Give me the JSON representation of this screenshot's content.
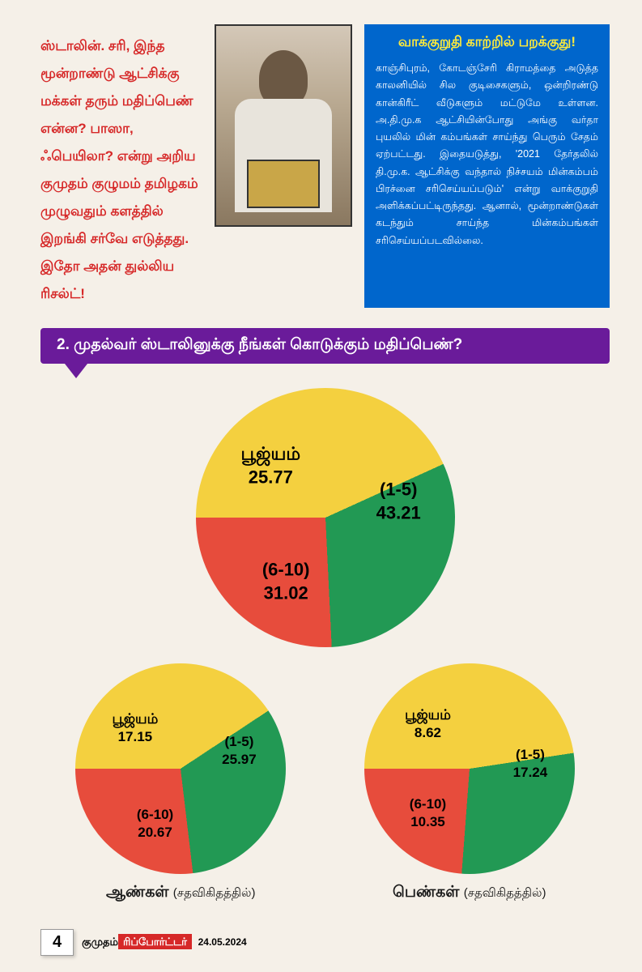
{
  "intro_text": "ஸ்டாலின். சரி, இந்த மூன்றாண்டு ஆட்சிக்கு மக்கள் தரும் மதிப்பெண் என்ன? பாஸா, ஃபெயிலா? என்று அறிய குமுதம் குழுமம் தமிழகம் முழுவதும் களத்தில் இறங்கி சர்வே எடுத்தது. இதோ அதன் துல்லிய ரிசல்ட்!",
  "intro_color": "#d62828",
  "sidebar": {
    "title": "வாக்குறுதி காற்றில் பறக்குது!",
    "body": "காஞ்சிபுரம், கோடஞ்சேரி கிராமத்தை அடுத்த காலனியில் சில குடிசைகளும், ஒன்றிரண்டு கான்கிரீட் வீடுகளும் மட்டுமே உள்ளன. அ.தி.மு.க ஆட்சியின்போது அங்கு வர்தா புயலில் மின் கம்பங்கள் சாய்ந்து பெரும் சேதம் ஏற்பட்டது. இதையடுத்து, '2021 தேர்தலில் தி.மு.க. ஆட்சிக்கு வந்தால் நிச்சயம் மின்கம்பம் பிரச்னை சரிசெய்யப்படும்' என்று வாக்குறுதி அளிக்கப்பட்டிருந்தது. ஆனால், மூன்றாண்டுகள் கடந்தும் சாய்ந்த மின்கம்பங்கள் சரிசெய்யப்படவில்லை.",
    "bg_color": "#0066cc",
    "title_color": "#ffeb3b"
  },
  "question": {
    "text": "2. முதல்வர் ஸ்டாலினுக்கு நீங்கள் கொடுக்கும் மதிப்பெண்?",
    "bg_color": "#6a1b9a"
  },
  "charts": {
    "main": {
      "type": "pie",
      "size": 320,
      "slices": [
        {
          "label": "(1-5)",
          "value": 43.21,
          "color": "#f4d03f"
        },
        {
          "label": "(6-10)",
          "value": 31.02,
          "color": "#229954"
        },
        {
          "label": "பூஜ்யம்",
          "value": 25.77,
          "color": "#e74c3c"
        }
      ],
      "label_fontsize": 22
    },
    "male": {
      "type": "pie",
      "size": 260,
      "caption": "ஆண்கள்",
      "caption_sub": "(சதவிகிதத்தில்)",
      "slices": [
        {
          "label": "(1-5)",
          "value": 25.97,
          "color": "#f4d03f"
        },
        {
          "label": "(6-10)",
          "value": 20.67,
          "color": "#229954"
        },
        {
          "label": "பூஜ்யம்",
          "value": 17.15,
          "color": "#e74c3c"
        }
      ],
      "label_fontsize": 17
    },
    "female": {
      "type": "pie",
      "size": 260,
      "caption": "பெண்கள்",
      "caption_sub": "(சதவிகிதத்தில்)",
      "slices": [
        {
          "label": "(1-5)",
          "value": 17.24,
          "color": "#f4d03f"
        },
        {
          "label": "(6-10)",
          "value": 10.35,
          "color": "#229954"
        },
        {
          "label": "பூஜ்யம்",
          "value": 8.62,
          "color": "#e74c3c"
        }
      ],
      "label_fontsize": 17
    }
  },
  "footer": {
    "page_number": "4",
    "publication_prefix": "குமுதம்",
    "publication_name": "ரிப்போர்ட்டர்",
    "date": "24.05.2024"
  }
}
